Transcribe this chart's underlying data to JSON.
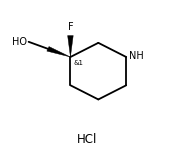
{
  "bg_color": "#ffffff",
  "text_color": "#000000",
  "line_color": "#000000",
  "line_width": 1.3,
  "font_size_atoms": 7.0,
  "font_size_hcl": 8.5,
  "font_size_stereo": 5.0,
  "ho_label": "HO",
  "f_label": "F",
  "nh_label": "NH",
  "stereo_label": "&1",
  "hcl_label": "HCl",
  "rcx": 0.565,
  "rcy": 0.535,
  "rr": 0.185
}
